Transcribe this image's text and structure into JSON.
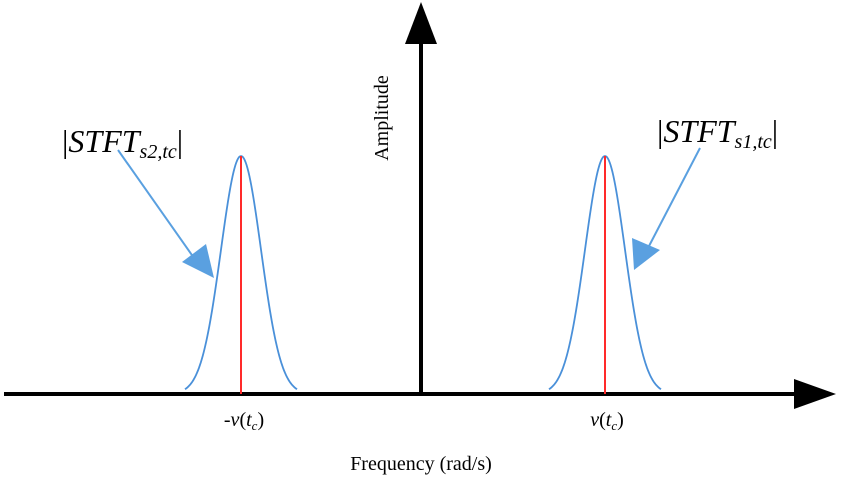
{
  "diagram": {
    "x_axis_label": "Frequency (rad/s)",
    "y_axis_label": "Amplitude",
    "left_tick": {
      "prefix": "-",
      "var": "v",
      "open": "(",
      "t": "t",
      "sub": "c",
      "close": ")"
    },
    "right_tick": {
      "prefix": "",
      "var": "v",
      "open": "(",
      "t": "t",
      "sub": "c",
      "close": ")"
    },
    "left_label": {
      "bar_left": "|",
      "main": "STFT",
      "sub": "s2,tc",
      "bar_right": "|"
    },
    "right_label": {
      "bar_left": "|",
      "main": "STFT",
      "sub": "s1,tc",
      "bar_right": "|"
    },
    "colors": {
      "axis": "#000000",
      "curve": "#4a90d9",
      "center_line": "#ff2a2a",
      "pointer": "#5aa0e0"
    }
  }
}
